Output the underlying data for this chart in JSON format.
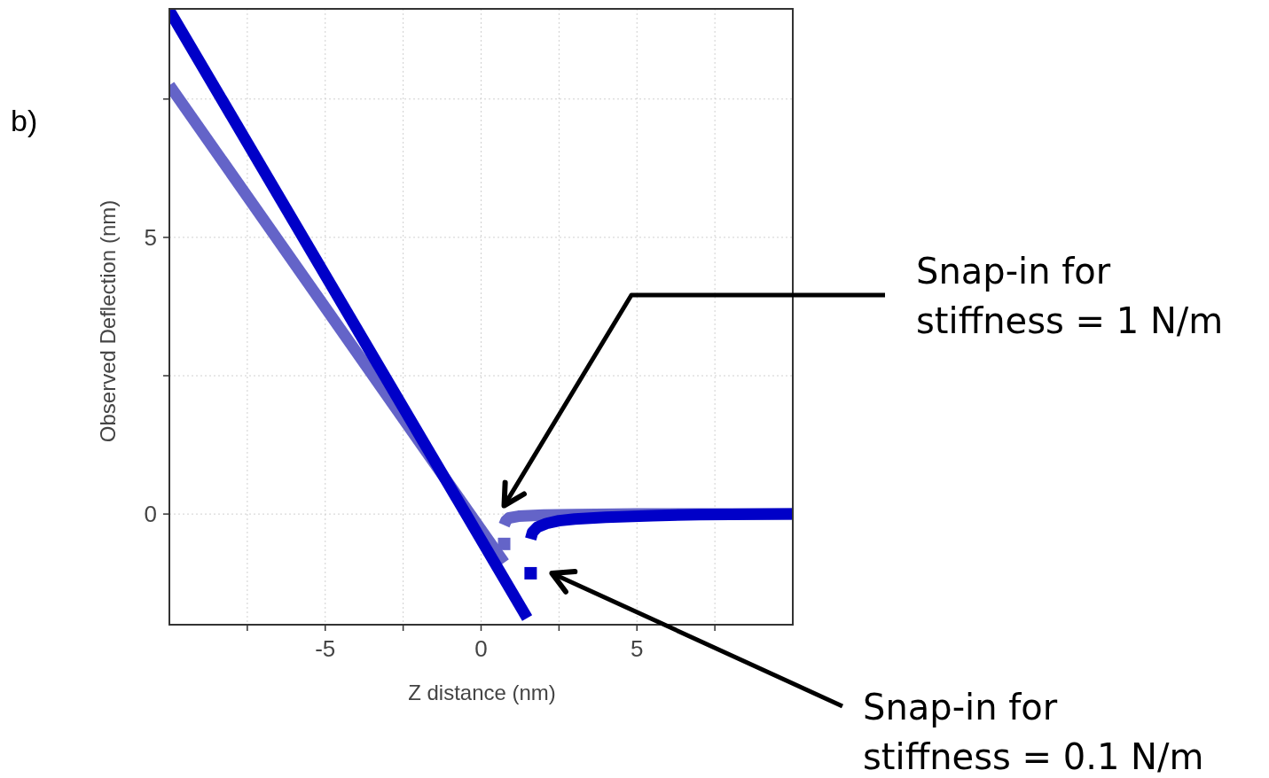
{
  "chart_data": {
    "type": "line",
    "xlabel": "Z distance (nm)",
    "ylabel": "Observed Deflection (nm)",
    "xlim": [
      -10,
      10
    ],
    "ylim": [
      -2,
      9.13
    ],
    "xticks": [
      {
        "value": -7.5,
        "label": null
      },
      -5,
      {
        "value": -2.5,
        "label": null
      },
      0,
      {
        "value": 2.5,
        "label": null
      },
      5,
      {
        "value": 7.5,
        "label": null
      }
    ],
    "yticks": [
      0,
      {
        "value": 2.5,
        "label": null
      },
      5,
      {
        "value": 7.5,
        "label": null
      }
    ],
    "grid": true,
    "line_style": "solid",
    "series": [
      {
        "color": "#6464c8",
        "x": [
          -10,
          0.74
        ],
        "values": [
          7.75,
          -0.88
        ]
      },
      {
        "type": "scatter",
        "marker": "square",
        "color": "#6464c8",
        "x": [
          0.74
        ],
        "values": [
          -0.54
        ]
      },
      {
        "color": "#6464c8",
        "x": [
          0.74,
          0.8,
          0.9,
          1.2,
          2,
          3,
          5,
          10
        ],
        "values": [
          -0.2,
          -0.12,
          -0.07,
          -0.04,
          -0.02,
          -0.01,
          0,
          0
        ]
      },
      {
        "color": "#0000c8",
        "x": [
          -10,
          1.48
        ],
        "values": [
          9.1,
          -1.88
        ]
      },
      {
        "type": "scatter",
        "marker": "square",
        "color": "#0000c8",
        "x": [
          1.59
        ],
        "values": [
          -1.07
        ]
      },
      {
        "color": "#0000c8",
        "x": [
          1.59,
          1.65,
          1.8,
          2.1,
          2.5,
          3,
          4,
          5.5,
          7,
          10
        ],
        "values": [
          -0.45,
          -0.33,
          -0.24,
          -0.17,
          -0.12,
          -0.09,
          -0.06,
          -0.03,
          -0.01,
          0
        ]
      }
    ],
    "annotations": [
      "b)",
      "Snap-in for\nstiffness = 1 N/m",
      "Snap-in for\nstiffness = 0.1 N/m"
    ]
  }
}
